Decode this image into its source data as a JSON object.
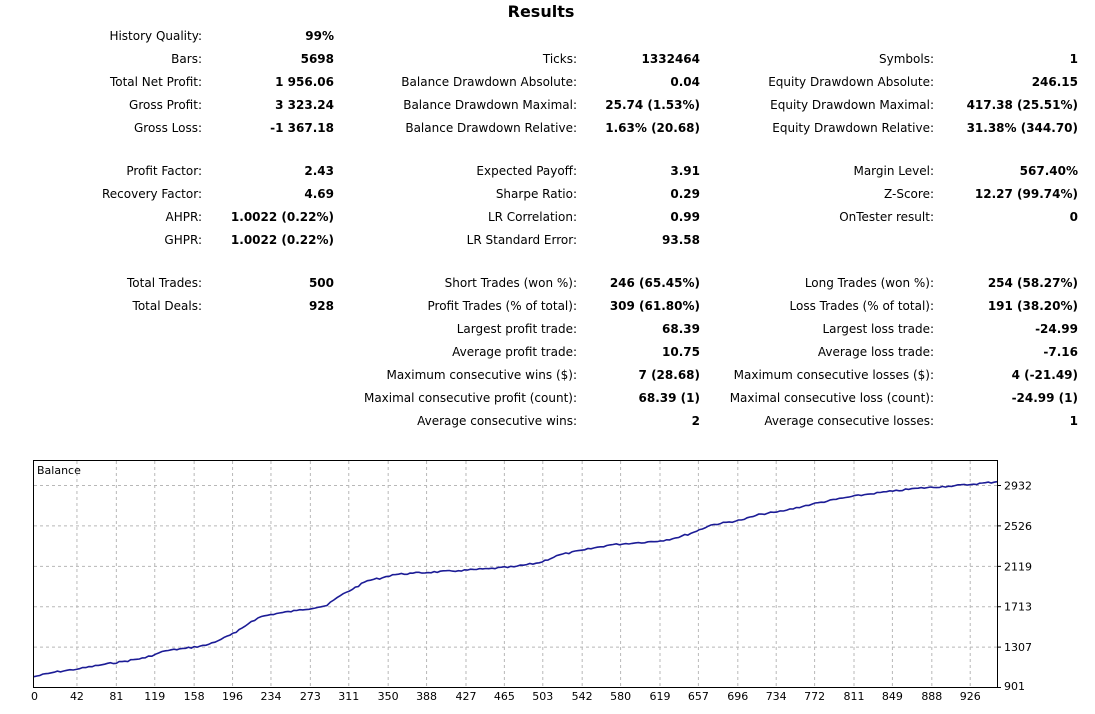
{
  "title": "Results",
  "stats": {
    "history_quality": {
      "label": "History Quality:",
      "value": "99%"
    },
    "bars": {
      "label": "Bars:",
      "value": "5698"
    },
    "ticks": {
      "label": "Ticks:",
      "value": "1332464"
    },
    "symbols": {
      "label": "Symbols:",
      "value": "1"
    },
    "total_net_profit": {
      "label": "Total Net Profit:",
      "value": "1 956.06"
    },
    "balance_dd_absolute": {
      "label": "Balance Drawdown Absolute:",
      "value": "0.04"
    },
    "equity_dd_absolute": {
      "label": "Equity Drawdown Absolute:",
      "value": "246.15"
    },
    "gross_profit": {
      "label": "Gross Profit:",
      "value": "3 323.24"
    },
    "balance_dd_maximal": {
      "label": "Balance Drawdown Maximal:",
      "value": "25.74 (1.53%)"
    },
    "equity_dd_maximal": {
      "label": "Equity Drawdown Maximal:",
      "value": "417.38 (25.51%)"
    },
    "gross_loss": {
      "label": "Gross Loss:",
      "value": "-1 367.18"
    },
    "balance_dd_relative": {
      "label": "Balance Drawdown Relative:",
      "value": "1.63% (20.68)"
    },
    "equity_dd_relative": {
      "label": "Equity Drawdown Relative:",
      "value": "31.38% (344.70)"
    },
    "profit_factor": {
      "label": "Profit Factor:",
      "value": "2.43"
    },
    "expected_payoff": {
      "label": "Expected Payoff:",
      "value": "3.91"
    },
    "margin_level": {
      "label": "Margin Level:",
      "value": "567.40%"
    },
    "recovery_factor": {
      "label": "Recovery Factor:",
      "value": "4.69"
    },
    "sharpe_ratio": {
      "label": "Sharpe Ratio:",
      "value": "0.29"
    },
    "z_score": {
      "label": "Z-Score:",
      "value": "12.27 (99.74%)"
    },
    "ahpr": {
      "label": "AHPR:",
      "value": "1.0022 (0.22%)"
    },
    "lr_correlation": {
      "label": "LR Correlation:",
      "value": "0.99"
    },
    "ontester_result": {
      "label": "OnTester result:",
      "value": "0"
    },
    "ghpr": {
      "label": "GHPR:",
      "value": "1.0022 (0.22%)"
    },
    "lr_standard_error": {
      "label": "LR Standard Error:",
      "value": "93.58"
    },
    "total_trades": {
      "label": "Total Trades:",
      "value": "500"
    },
    "short_trades": {
      "label": "Short Trades (won %):",
      "value": "246 (65.45%)"
    },
    "long_trades": {
      "label": "Long Trades (won %):",
      "value": "254 (58.27%)"
    },
    "total_deals": {
      "label": "Total Deals:",
      "value": "928"
    },
    "profit_trades": {
      "label": "Profit Trades (% of total):",
      "value": "309 (61.80%)"
    },
    "loss_trades": {
      "label": "Loss Trades (% of total):",
      "value": "191 (38.20%)"
    },
    "largest_profit_trade": {
      "label": "Largest profit trade:",
      "value": "68.39"
    },
    "largest_loss_trade": {
      "label": "Largest loss trade:",
      "value": "-24.99"
    },
    "average_profit_trade": {
      "label": "Average profit trade:",
      "value": "10.75"
    },
    "average_loss_trade": {
      "label": "Average loss trade:",
      "value": "-7.16"
    },
    "max_consecutive_wins": {
      "label": "Maximum consecutive wins ($):",
      "value": "7 (28.68)"
    },
    "max_consecutive_losses": {
      "label": "Maximum consecutive losses ($):",
      "value": "4 (-21.49)"
    },
    "maximal_consecutive_profit": {
      "label": "Maximal consecutive profit (count):",
      "value": "68.39 (1)"
    },
    "maximal_consecutive_loss": {
      "label": "Maximal consecutive loss (count):",
      "value": "-24.99 (1)"
    },
    "average_consecutive_wins": {
      "label": "Average consecutive wins:",
      "value": "2"
    },
    "average_consecutive_losses": {
      "label": "Average consecutive losses:",
      "value": "1"
    }
  },
  "chart_data": {
    "type": "line",
    "title": "Balance",
    "x_ticks": [
      "0",
      "42",
      "81",
      "119",
      "158",
      "196",
      "234",
      "273",
      "311",
      "350",
      "388",
      "427",
      "465",
      "503",
      "542",
      "580",
      "619",
      "657",
      "696",
      "734",
      "772",
      "811",
      "849",
      "888",
      "926"
    ],
    "y_ticks": [
      "2932",
      "2526",
      "2119",
      "1713",
      "1307",
      "901"
    ],
    "ylim": [
      901,
      2932
    ],
    "xlim": [
      0,
      953
    ],
    "grid": true,
    "line_color": "#1c1c96",
    "series": [
      {
        "x": [
          0,
          20,
          45,
          70,
          90,
          110,
          120,
          130,
          150,
          170,
          185,
          200,
          215,
          225,
          240,
          260,
          290,
          300,
          330,
          345,
          355,
          375,
          420,
          450,
          475,
          500,
          520,
          545,
          570,
          595,
          620,
          635,
          650,
          670,
          700,
          720,
          735,
          745,
          770,
          800,
          825,
          850,
          875,
          905,
          930,
          953
        ],
        "y": [
          1005,
          1050,
          1085,
          1130,
          1160,
          1195,
          1230,
          1265,
          1290,
          1320,
          1380,
          1450,
          1560,
          1610,
          1640,
          1670,
          1720,
          1800,
          1970,
          2000,
          2030,
          2045,
          2070,
          2090,
          2110,
          2150,
          2230,
          2280,
          2330,
          2350,
          2370,
          2400,
          2445,
          2530,
          2580,
          2640,
          2660,
          2680,
          2740,
          2800,
          2840,
          2870,
          2900,
          2920,
          2940,
          2965
        ]
      }
    ]
  }
}
